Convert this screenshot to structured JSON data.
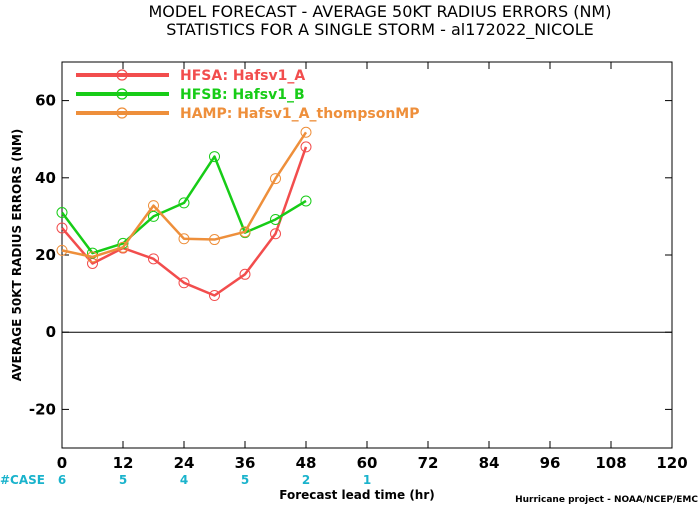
{
  "chart_data": {
    "type": "line",
    "title": "MODEL FORECAST - AVERAGE 50KT RADIUS ERRORS (NM)",
    "subtitle": "STATISTICS FOR A SINGLE STORM - al172022_NICOLE",
    "xlabel": "Forecast lead time (hr)",
    "ylabel": "AVERAGE 50KT RADIUS ERRORS (NM)",
    "xlim": [
      0,
      120
    ],
    "ylim": [
      -30,
      70
    ],
    "xticks": [
      "0",
      "12",
      "24",
      "36",
      "48",
      "60",
      "72",
      "84",
      "96",
      "108",
      "120"
    ],
    "yticks": [
      "-20",
      "0",
      "20",
      "40",
      "60"
    ],
    "legend_position": "top-left",
    "series": [
      {
        "name": "HFSA: Hafsv1_A",
        "color": "#f24d4d",
        "x": [
          0,
          6,
          12,
          18,
          24,
          30,
          36,
          42,
          48
        ],
        "y": [
          27,
          17.8,
          21.8,
          19,
          12.8,
          9.5,
          15,
          25.5,
          48
        ]
      },
      {
        "name": "HFSB: Hafsv1_B",
        "color": "#17cc17",
        "x": [
          0,
          6,
          12,
          18,
          24,
          30,
          36,
          42,
          48
        ],
        "y": [
          31,
          20.5,
          23,
          30,
          33.5,
          45.5,
          25.8,
          29.2,
          34
        ]
      },
      {
        "name": "HAMP: Hafsv1_A_thompsonMP",
        "color": "#ee8f3b",
        "x": [
          0,
          6,
          12,
          18,
          24,
          30,
          36,
          42,
          48
        ],
        "y": [
          21.2,
          19.5,
          22,
          32.8,
          24.2,
          24,
          26,
          39.8,
          51.8
        ]
      }
    ],
    "case_label": "#CASE",
    "case_color": "#1ab3cc",
    "case_counts": [
      {
        "x": 0,
        "n": "6"
      },
      {
        "x": 12,
        "n": "5"
      },
      {
        "x": 24,
        "n": "4"
      },
      {
        "x": 36,
        "n": "5"
      },
      {
        "x": 48,
        "n": "2"
      },
      {
        "x": 60,
        "n": "1"
      }
    ],
    "credit": "Hurricane project - NOAA/NCEP/EMC"
  }
}
